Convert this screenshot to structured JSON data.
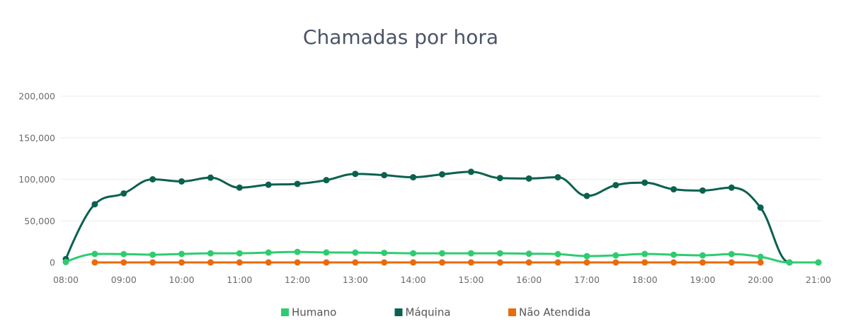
{
  "chart_data": {
    "type": "line",
    "title": "Chamadas por hora",
    "x": [
      "08:00",
      "08:30",
      "09:00",
      "09:30",
      "10:00",
      "10:30",
      "11:00",
      "11:30",
      "12:00",
      "12:30",
      "13:00",
      "13:30",
      "14:00",
      "14:30",
      "15:00",
      "15:30",
      "16:00",
      "16:30",
      "17:00",
      "17:30",
      "18:00",
      "18:30",
      "19:00",
      "19:30",
      "20:00",
      "20:30",
      "21:00"
    ],
    "ylim": [
      0,
      200000
    ],
    "yticks": [
      0,
      50000,
      100000,
      150000,
      200000
    ],
    "ytick_labels": [
      "0",
      "50,000",
      "100,000",
      "150,000",
      "200,000"
    ],
    "grid": true,
    "legend": "bottom-center",
    "series": [
      {
        "name": "Humano",
        "color": "#2ecc71",
        "values": [
          500,
          10200,
          10000,
          9300,
          10200,
          11000,
          11000,
          11900,
          12700,
          12000,
          11900,
          11500,
          11000,
          11000,
          11000,
          11000,
          10500,
          10000,
          7600,
          8500,
          10200,
          9300,
          8500,
          10000,
          6800,
          0,
          0
        ]
      },
      {
        "name": "Máquina",
        "color": "#0b6150",
        "values": [
          4000,
          70000,
          83000,
          100000,
          97500,
          102000,
          90000,
          93500,
          94500,
          99000,
          106500,
          105000,
          102500,
          106000,
          109000,
          101500,
          101000,
          102500,
          80000,
          93000,
          96000,
          88000,
          86500,
          90000,
          66000,
          0,
          0
        ]
      },
      {
        "name": "Não Atendida",
        "color": "#ea6a0c",
        "values": [
          null,
          0,
          0,
          0,
          0,
          0,
          0,
          0,
          0,
          0,
          0,
          0,
          0,
          0,
          0,
          0,
          0,
          0,
          0,
          0,
          0,
          0,
          0,
          0,
          0,
          null,
          null
        ]
      }
    ]
  }
}
